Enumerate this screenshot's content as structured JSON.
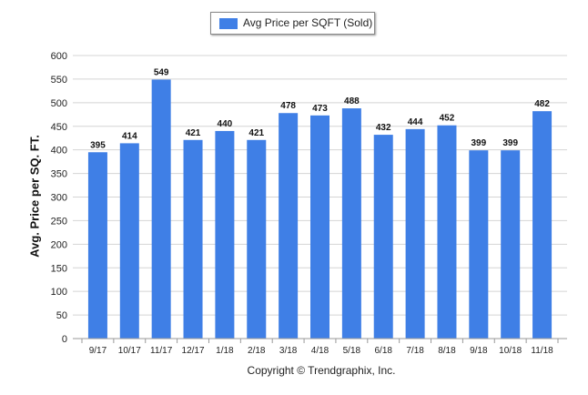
{
  "legend": {
    "label": "Avg Price per SQFT (Sold)",
    "color": "#3f7fe6"
  },
  "footer": {
    "copyright": "Copyright © Trendgraphix, Inc."
  },
  "chart_data": {
    "type": "bar",
    "ylabel": "Avg. Price per SQ. FT.",
    "xlabel": "",
    "ylim": [
      0,
      600
    ],
    "ytick_step": 50,
    "grid": true,
    "legend_position": "top",
    "bar_color": "#3f7fe6",
    "categories": [
      "9/17",
      "10/17",
      "11/17",
      "12/17",
      "1/18",
      "2/18",
      "3/18",
      "4/18",
      "5/18",
      "6/18",
      "7/18",
      "8/18",
      "9/18",
      "10/18",
      "11/18"
    ],
    "series": [
      {
        "name": "Avg Price per SQFT (Sold)",
        "values": [
          395,
          414,
          549,
          421,
          440,
          421,
          478,
          473,
          488,
          432,
          444,
          452,
          399,
          399,
          482
        ]
      }
    ]
  }
}
